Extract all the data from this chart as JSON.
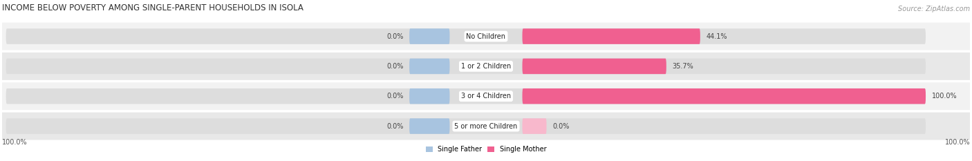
{
  "title": "INCOME BELOW POVERTY AMONG SINGLE-PARENT HOUSEHOLDS IN ISOLA",
  "source": "Source: ZipAtlas.com",
  "categories": [
    "No Children",
    "1 or 2 Children",
    "3 or 4 Children",
    "5 or more Children"
  ],
  "single_father": [
    0.0,
    0.0,
    0.0,
    0.0
  ],
  "single_mother": [
    44.1,
    35.7,
    100.0,
    0.0
  ],
  "father_color": "#a8c4e0",
  "mother_color": "#f06090",
  "mother_color_light": "#f8b8cc",
  "row_bg_even": "#f2f2f2",
  "row_bg_odd": "#e8e8e8",
  "title_fontsize": 8.5,
  "source_fontsize": 7,
  "label_fontsize": 7,
  "tick_fontsize": 7,
  "max_value": 100.0,
  "left_label": "100.0%",
  "right_label": "100.0%",
  "figsize": [
    14.06,
    2.33
  ],
  "dpi": 100
}
